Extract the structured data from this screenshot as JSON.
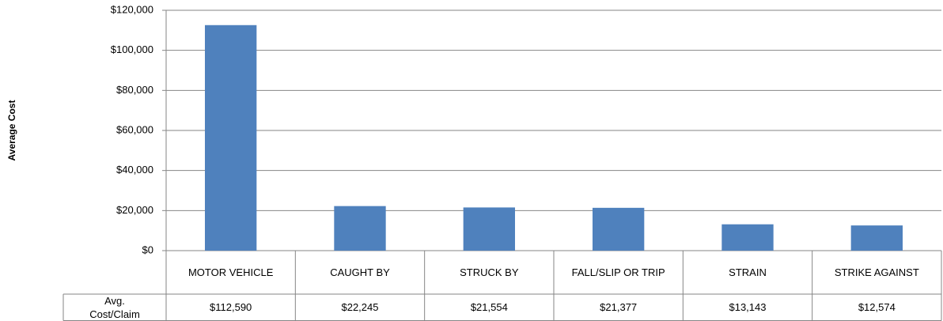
{
  "chart_data": {
    "type": "bar",
    "y_label": "Average Cost",
    "categories": [
      "MOTOR VEHICLE",
      "CAUGHT BY",
      "STRUCK BY",
      "FALL/SLIP OR TRIP",
      "STRAIN",
      "STRIKE AGAINST"
    ],
    "row_label": "Avg. Cost/Claim",
    "values": [
      112590,
      22245,
      21554,
      21377,
      13143,
      12574
    ],
    "value_labels": [
      "$112,590",
      "$22,245",
      "$21,554",
      "$21,377",
      "$13,143",
      "$12,574"
    ],
    "color": "#4f81bd",
    "ylim": [
      0,
      120000
    ],
    "yticks": [
      {
        "value": 0,
        "label": "$0"
      },
      {
        "value": 20000,
        "label": "$20,000"
      },
      {
        "value": 40000,
        "label": "$40,000"
      },
      {
        "value": 60000,
        "label": "$60,000"
      },
      {
        "value": 80000,
        "label": "$80,000"
      },
      {
        "value": 100000,
        "label": "$100,000"
      },
      {
        "value": 120000,
        "label": "$120,000"
      }
    ],
    "grid": true
  }
}
